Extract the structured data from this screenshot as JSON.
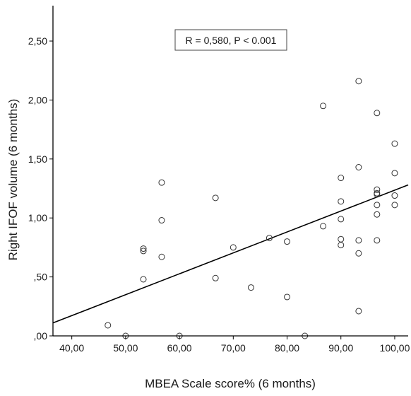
{
  "chart_data": {
    "type": "scatter",
    "title": "",
    "xlabel": "MBEA Scale score% (6 months)",
    "ylabel": "Right IFOF volume (6 months)",
    "xlim": [
      36.5,
      102.5
    ],
    "ylim": [
      0,
      2.8
    ],
    "x_ticks": [
      40,
      50,
      60,
      70,
      80,
      90,
      100
    ],
    "x_tick_labels": [
      "40,00",
      "50,00",
      "60,00",
      "70,00",
      "80,00",
      "90,00",
      "100,00"
    ],
    "y_ticks": [
      0,
      0.5,
      1.0,
      1.5,
      2.0,
      2.5
    ],
    "y_tick_labels": [
      ",00",
      ",50",
      "1,00",
      "1,50",
      "2,00",
      "2,50"
    ],
    "annotation": "R = 0,580, P < 0.001",
    "grid": false,
    "fit_line": {
      "x": [
        36.5,
        102.5
      ],
      "y": [
        0.11,
        1.28
      ]
    },
    "points": [
      [
        46.7,
        0.09
      ],
      [
        50.0,
        0.0
      ],
      [
        53.3,
        0.74
      ],
      [
        53.3,
        0.72
      ],
      [
        53.3,
        0.48
      ],
      [
        56.7,
        1.3
      ],
      [
        56.7,
        0.98
      ],
      [
        56.7,
        0.67
      ],
      [
        60.0,
        0.0
      ],
      [
        66.7,
        1.17
      ],
      [
        66.7,
        0.49
      ],
      [
        70.0,
        0.75
      ],
      [
        73.3,
        0.41
      ],
      [
        76.7,
        0.83
      ],
      [
        80.0,
        0.8
      ],
      [
        80.0,
        0.33
      ],
      [
        83.3,
        0.0
      ],
      [
        86.7,
        1.95
      ],
      [
        86.7,
        0.93
      ],
      [
        90.0,
        1.34
      ],
      [
        90.0,
        1.14
      ],
      [
        90.0,
        0.99
      ],
      [
        90.0,
        0.82
      ],
      [
        90.0,
        0.77
      ],
      [
        93.3,
        2.16
      ],
      [
        93.3,
        1.43
      ],
      [
        93.3,
        0.81
      ],
      [
        93.3,
        0.7
      ],
      [
        93.3,
        0.21
      ],
      [
        96.7,
        1.89
      ],
      [
        96.7,
        1.24
      ],
      [
        96.7,
        1.21
      ],
      [
        96.7,
        1.2
      ],
      [
        96.7,
        1.11
      ],
      [
        96.7,
        1.03
      ],
      [
        96.7,
        0.81
      ],
      [
        100.0,
        1.63
      ],
      [
        100.0,
        1.38
      ],
      [
        100.0,
        1.19
      ],
      [
        100.0,
        1.11
      ]
    ]
  },
  "colors": {
    "axis": "#000000",
    "marker": "#333333",
    "background": "#ffffff"
  }
}
